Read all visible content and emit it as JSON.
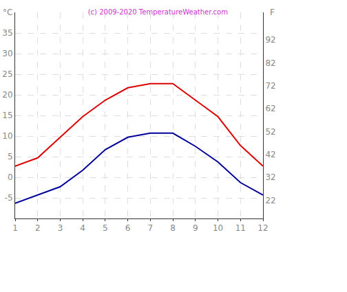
{
  "chart_data": {
    "type": "line",
    "title": "(c) 2009-2020 TemperatureWeather.com",
    "y_label": "°C",
    "y2_label": "F",
    "x": [
      1,
      2,
      3,
      4,
      5,
      6,
      7,
      8,
      9,
      10,
      11,
      12
    ],
    "series": [
      {
        "color": "#dd0000",
        "values": [
          2.7,
          4.7,
          9.7,
          14.7,
          18.7,
          21.7,
          22.7,
          22.7,
          18.7,
          14.7,
          7.7,
          2.7
        ]
      },
      {
        "color": "#000099",
        "values": [
          -6.3,
          -4.3,
          -2.3,
          1.7,
          6.7,
          9.7,
          10.7,
          10.7,
          7.5,
          3.7,
          -1.3,
          -4.3
        ]
      }
    ],
    "xlim": [
      1,
      12
    ],
    "xticks": [
      1,
      2,
      3,
      4,
      5,
      6,
      7,
      8,
      9,
      10,
      11,
      12
    ],
    "ylim": [
      -10,
      40
    ],
    "yticks": [
      -5,
      0,
      5,
      10,
      15,
      20,
      25,
      30,
      35
    ],
    "y2lim": [
      14,
      104
    ],
    "y2ticks": [
      22,
      32,
      42,
      52,
      62,
      72,
      82,
      92
    ],
    "grid": true
  }
}
